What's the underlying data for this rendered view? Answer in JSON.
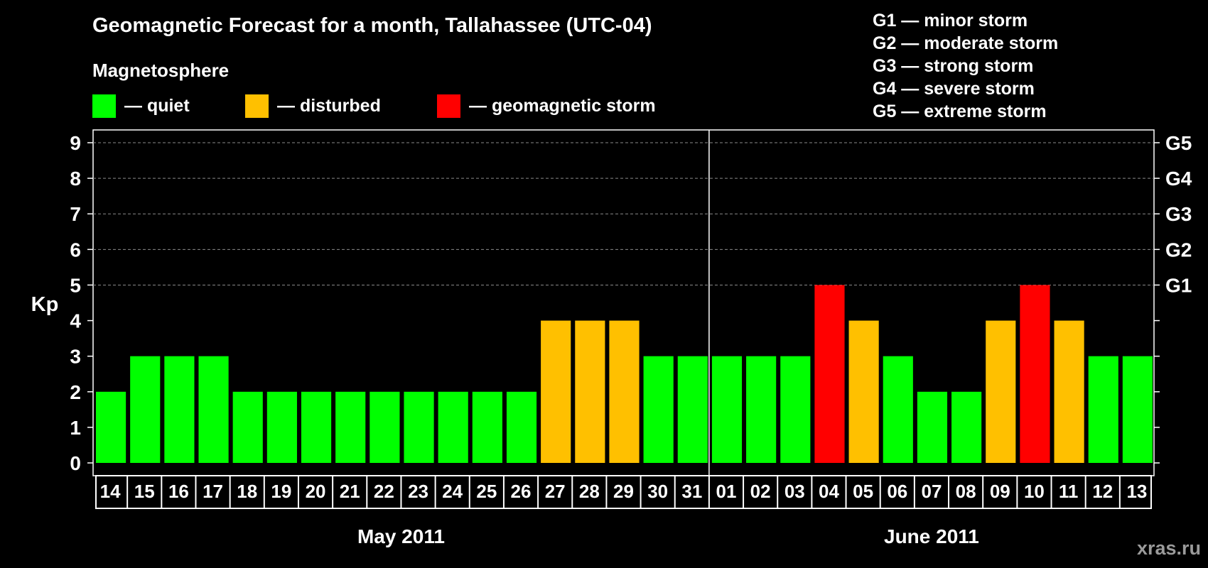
{
  "title": "Geomagnetic Forecast for a month, Tallahassee (UTC-04)",
  "subtitle": "Magnetosphere",
  "legend": [
    {
      "label": "— quiet",
      "color": "#00ff00"
    },
    {
      "label": "— disturbed",
      "color": "#ffc000"
    },
    {
      "label": "— geomagnetic storm",
      "color": "#ff0000"
    }
  ],
  "g_legend": [
    "G1 — minor storm",
    "G2 — moderate storm",
    "G3 — strong storm",
    "G4 — severe storm",
    "G5 — extreme storm"
  ],
  "watermark": "xras.ru",
  "chart_data": {
    "type": "bar",
    "ylabel": "Kp",
    "ylim": [
      0,
      9
    ],
    "yticks": [
      "0",
      "1",
      "2",
      "3",
      "4",
      "5",
      "6",
      "7",
      "8",
      "9"
    ],
    "right_ticks": [
      {
        "value": 5,
        "label": "G1"
      },
      {
        "value": 6,
        "label": "G2"
      },
      {
        "value": 7,
        "label": "G3"
      },
      {
        "value": 8,
        "label": "G4"
      },
      {
        "value": 9,
        "label": "G5"
      }
    ],
    "grid": "dashed, y from 5 to 9",
    "months": [
      {
        "label": "May 2011",
        "start": 0,
        "count": 18
      },
      {
        "label": "June 2011",
        "start": 18,
        "count": 13
      }
    ],
    "categories": [
      "14",
      "15",
      "16",
      "17",
      "18",
      "19",
      "20",
      "21",
      "22",
      "23",
      "24",
      "25",
      "26",
      "27",
      "28",
      "29",
      "30",
      "31",
      "01",
      "02",
      "03",
      "04",
      "05",
      "06",
      "07",
      "08",
      "09",
      "10",
      "11",
      "12",
      "13"
    ],
    "values": [
      2,
      3,
      3,
      3,
      2,
      2,
      2,
      2,
      2,
      2,
      2,
      2,
      2,
      4,
      4,
      4,
      3,
      3,
      3,
      3,
      3,
      5,
      4,
      3,
      2,
      2,
      4,
      5,
      4,
      3,
      3
    ],
    "levels": [
      "quiet",
      "quiet",
      "quiet",
      "quiet",
      "quiet",
      "quiet",
      "quiet",
      "quiet",
      "quiet",
      "quiet",
      "quiet",
      "quiet",
      "quiet",
      "disturbed",
      "disturbed",
      "disturbed",
      "quiet",
      "quiet",
      "quiet",
      "quiet",
      "quiet",
      "geomagnetic storm",
      "disturbed",
      "quiet",
      "quiet",
      "quiet",
      "disturbed",
      "geomagnetic storm",
      "disturbed",
      "quiet",
      "quiet"
    ],
    "colors": {
      "quiet": "#00ff00",
      "disturbed": "#ffc000",
      "geomagnetic storm": "#ff0000"
    }
  }
}
